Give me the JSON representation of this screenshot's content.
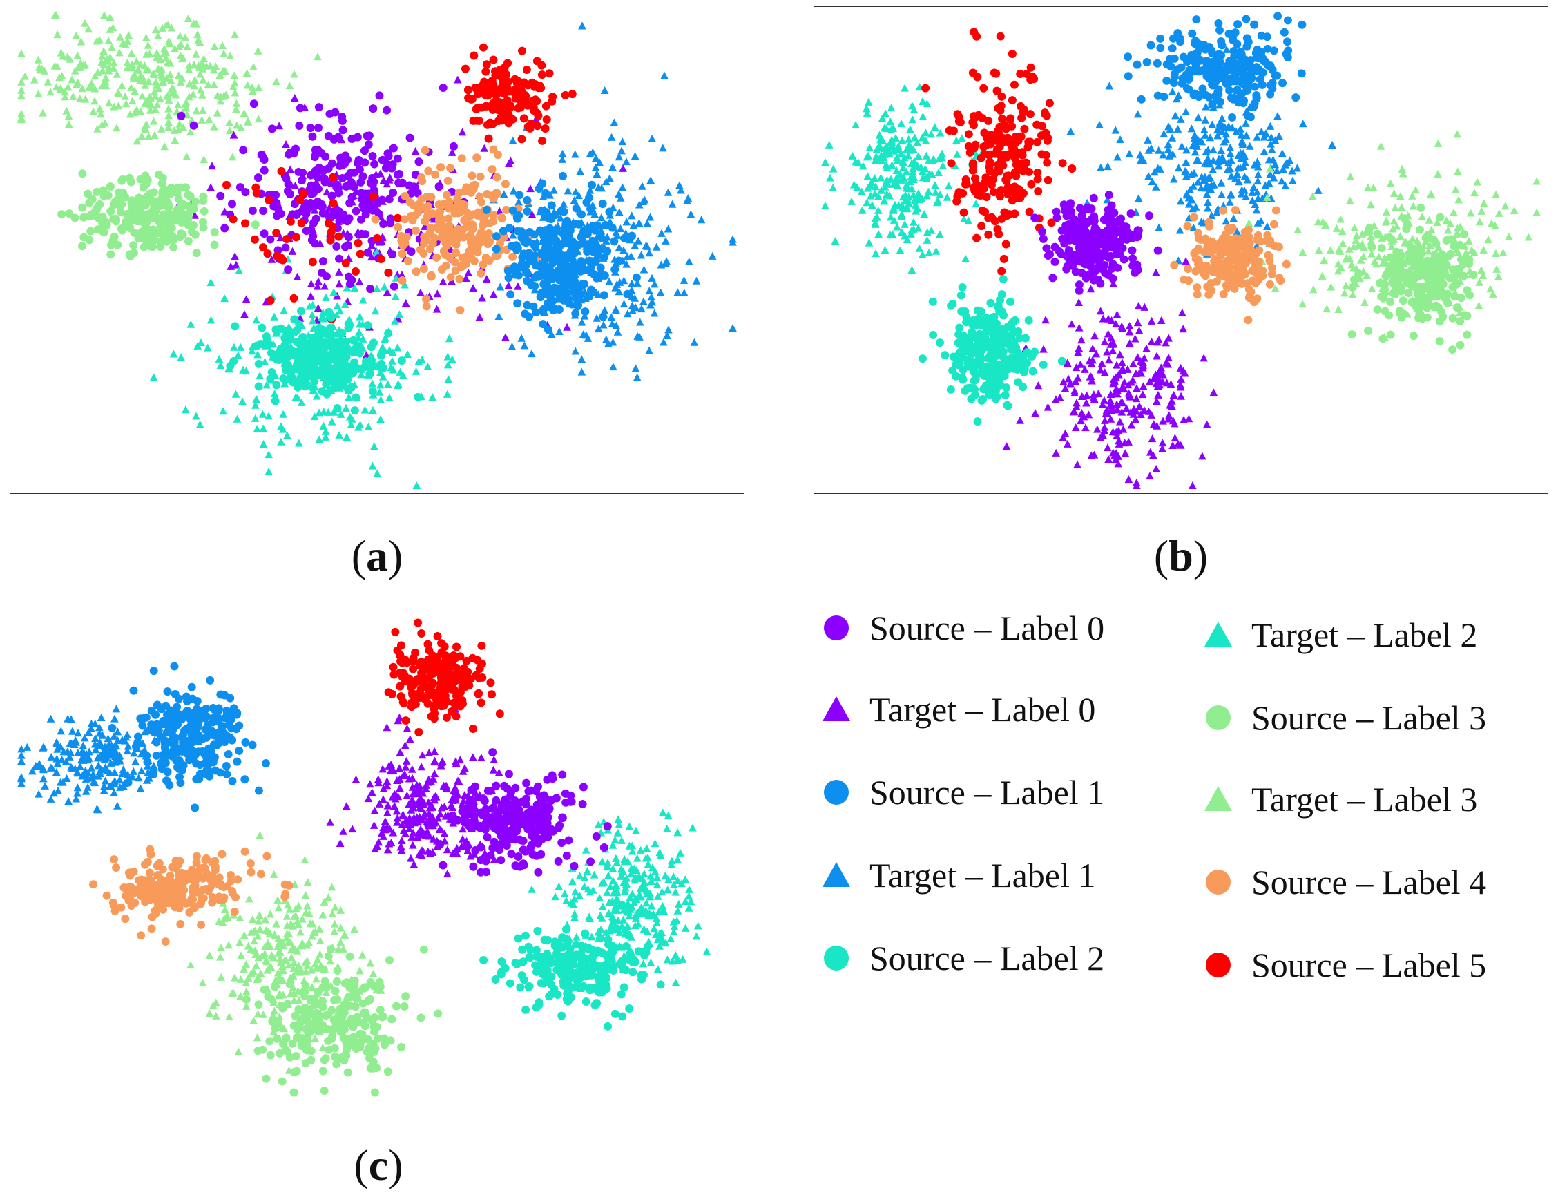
{
  "chart_data": [
    {
      "type": "scatter",
      "panel": "(a)",
      "caption_letter": "a",
      "grid": false,
      "axes_visible": false,
      "clusters": [
        {
          "series": "Target – Label 3",
          "center": [
            0.19,
            0.15
          ],
          "spread": [
            0.11,
            0.09
          ],
          "count": 320
        },
        {
          "series": "Source – Label 3",
          "center": [
            0.19,
            0.43
          ],
          "spread": [
            0.06,
            0.05
          ],
          "count": 250
        },
        {
          "series": "Source – Label 0",
          "center": [
            0.45,
            0.38
          ],
          "spread": [
            0.09,
            0.1
          ],
          "count": 260
        },
        {
          "series": "Target – Label 0",
          "center": [
            0.5,
            0.45
          ],
          "spread": [
            0.16,
            0.14
          ],
          "count": 170
        },
        {
          "series": "Source – Label 5",
          "center": [
            0.68,
            0.18
          ],
          "spread": [
            0.04,
            0.05
          ],
          "count": 150
        },
        {
          "series": "Source – Label 5",
          "center": [
            0.4,
            0.48
          ],
          "spread": [
            0.08,
            0.09
          ],
          "count": 40
        },
        {
          "series": "Source – Label 4",
          "center": [
            0.61,
            0.45
          ],
          "spread": [
            0.05,
            0.08
          ],
          "count": 230
        },
        {
          "series": "Source – Label 1",
          "center": [
            0.75,
            0.52
          ],
          "spread": [
            0.05,
            0.08
          ],
          "count": 300
        },
        {
          "series": "Target – Label 1",
          "center": [
            0.81,
            0.5
          ],
          "spread": [
            0.08,
            0.16
          ],
          "count": 260
        },
        {
          "series": "Source – Label 2",
          "center": [
            0.42,
            0.72
          ],
          "spread": [
            0.05,
            0.05
          ],
          "count": 260
        },
        {
          "series": "Target – Label 2",
          "center": [
            0.43,
            0.74
          ],
          "spread": [
            0.1,
            0.12
          ],
          "count": 260
        }
      ]
    },
    {
      "type": "scatter",
      "panel": "(b)",
      "caption_letter": "b",
      "grid": false,
      "axes_visible": false,
      "clusters": [
        {
          "series": "Target – Label 2",
          "center": [
            0.12,
            0.35
          ],
          "spread": [
            0.06,
            0.1
          ],
          "count": 250
        },
        {
          "series": "Source – Label 5",
          "center": [
            0.26,
            0.3
          ],
          "spread": [
            0.04,
            0.12
          ],
          "count": 220
        },
        {
          "series": "Source – Label 0",
          "center": [
            0.38,
            0.48
          ],
          "spread": [
            0.04,
            0.05
          ],
          "count": 230
        },
        {
          "series": "Source – Label 2",
          "center": [
            0.24,
            0.71
          ],
          "spread": [
            0.04,
            0.07
          ],
          "count": 250
        },
        {
          "series": "Target – Label 0",
          "center": [
            0.42,
            0.78
          ],
          "spread": [
            0.07,
            0.1
          ],
          "count": 260
        },
        {
          "series": "Source – Label 1",
          "center": [
            0.56,
            0.13
          ],
          "spread": [
            0.06,
            0.05
          ],
          "count": 250
        },
        {
          "series": "Target – Label 1",
          "center": [
            0.55,
            0.32
          ],
          "spread": [
            0.08,
            0.09
          ],
          "count": 250
        },
        {
          "series": "Source – Label 4",
          "center": [
            0.57,
            0.52
          ],
          "spread": [
            0.04,
            0.05
          ],
          "count": 220
        },
        {
          "series": "Source – Label 3",
          "center": [
            0.83,
            0.56
          ],
          "spread": [
            0.04,
            0.07
          ],
          "count": 240
        },
        {
          "series": "Target – Label 3",
          "center": [
            0.8,
            0.5
          ],
          "spread": [
            0.1,
            0.09
          ],
          "count": 230
        }
      ]
    },
    {
      "type": "scatter",
      "panel": "(c)",
      "caption_letter": "c",
      "grid": false,
      "axes_visible": false,
      "clusters": [
        {
          "series": "Source – Label 1",
          "center": [
            0.25,
            0.25
          ],
          "spread": [
            0.05,
            0.07
          ],
          "count": 250
        },
        {
          "series": "Target – Label 1",
          "center": [
            0.12,
            0.3
          ],
          "spread": [
            0.06,
            0.06
          ],
          "count": 210
        },
        {
          "series": "Source – Label 4",
          "center": [
            0.23,
            0.56
          ],
          "spread": [
            0.06,
            0.04
          ],
          "count": 230
        },
        {
          "series": "Target – Label 3",
          "center": [
            0.37,
            0.72
          ],
          "spread": [
            0.06,
            0.1
          ],
          "count": 250
        },
        {
          "series": "Source – Label 3",
          "center": [
            0.44,
            0.84
          ],
          "spread": [
            0.06,
            0.07
          ],
          "count": 230
        },
        {
          "series": "Source – Label 5",
          "center": [
            0.58,
            0.13
          ],
          "spread": [
            0.04,
            0.05
          ],
          "count": 220
        },
        {
          "series": "Target – Label 0",
          "center": [
            0.56,
            0.4
          ],
          "spread": [
            0.06,
            0.08
          ],
          "count": 260
        },
        {
          "series": "Source – Label 0",
          "center": [
            0.69,
            0.43
          ],
          "spread": [
            0.05,
            0.06
          ],
          "count": 230
        },
        {
          "series": "Target – Label 2",
          "center": [
            0.84,
            0.58
          ],
          "spread": [
            0.06,
            0.1
          ],
          "count": 260
        },
        {
          "series": "Source – Label 2",
          "center": [
            0.77,
            0.73
          ],
          "spread": [
            0.06,
            0.05
          ],
          "count": 240
        }
      ]
    }
  ],
  "series_styles": {
    "Source – Label 0": {
      "color": "#8b00ff",
      "marker": "circle"
    },
    "Target – Label 0": {
      "color": "#8b00ff",
      "marker": "triangle"
    },
    "Source – Label 1": {
      "color": "#0d8ff0",
      "marker": "circle"
    },
    "Target – Label 1": {
      "color": "#0d8ff0",
      "marker": "triangle"
    },
    "Source – Label 2": {
      "color": "#19e6c4",
      "marker": "circle"
    },
    "Target – Label 2": {
      "color": "#19e6c4",
      "marker": "triangle"
    },
    "Source – Label 3": {
      "color": "#90ee90",
      "marker": "circle"
    },
    "Target – Label 3": {
      "color": "#90ee90",
      "marker": "triangle"
    },
    "Source – Label 4": {
      "color": "#f79a5a",
      "marker": "circle"
    },
    "Source – Label 5": {
      "color": "#ff0000",
      "marker": "circle"
    }
  },
  "legend": {
    "placement": "bottom-right",
    "items": [
      {
        "label": "Source – Label 0",
        "color": "#8b00ff",
        "marker": "circle"
      },
      {
        "label": "Target – Label 0",
        "color": "#8b00ff",
        "marker": "triangle"
      },
      {
        "label": "Source – Label 1",
        "color": "#0d8ff0",
        "marker": "circle"
      },
      {
        "label": "Target – Label 1",
        "color": "#0d8ff0",
        "marker": "triangle"
      },
      {
        "label": "Source – Label 2",
        "color": "#19e6c4",
        "marker": "circle"
      },
      {
        "label": "Target – Label 2",
        "color": "#19e6c4",
        "marker": "triangle"
      },
      {
        "label": "Source – Label 3",
        "color": "#90ee90",
        "marker": "circle"
      },
      {
        "label": "Target – Label 3",
        "color": "#90ee90",
        "marker": "triangle"
      },
      {
        "label": "Source – Label 4",
        "color": "#f79a5a",
        "marker": "circle"
      },
      {
        "label": "Source – Label 5",
        "color": "#ff0000",
        "marker": "circle"
      }
    ]
  }
}
